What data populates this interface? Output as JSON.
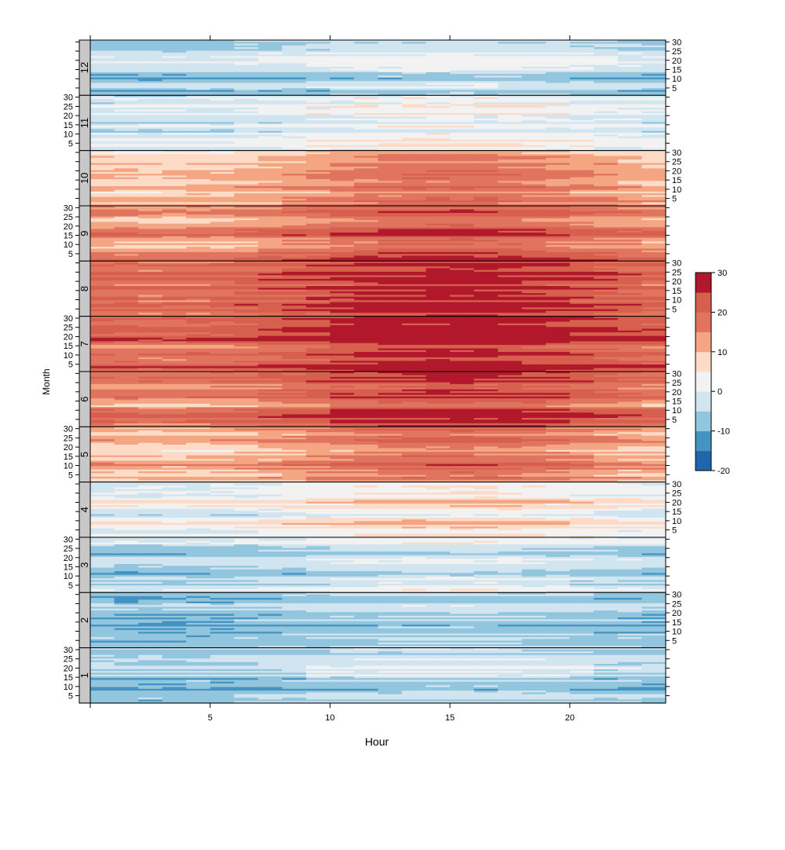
{
  "chart_data": {
    "type": "heatmap",
    "title": "",
    "xlabel": "Hour",
    "ylabel": "Month",
    "xlim": [
      0,
      24
    ],
    "ylim": [
      1,
      31
    ],
    "x_ticks": [
      5,
      10,
      15,
      20
    ],
    "x_tick_labels": [
      "5",
      "10",
      "15",
      "20"
    ],
    "y_ticks": [
      5,
      10,
      15,
      20,
      25,
      30
    ],
    "y_tick_labels": [
      "5",
      "10",
      "15",
      "20",
      "25",
      "30"
    ],
    "panels": [
      {
        "month": 12,
        "label": "12",
        "base": -6,
        "hour_amp": 1.0,
        "tick_side": "right"
      },
      {
        "month": 11,
        "label": "11",
        "base": 2,
        "hour_amp": 1.2,
        "tick_side": "left"
      },
      {
        "month": 10,
        "label": "10",
        "base": 13,
        "hour_amp": 2.5,
        "tick_side": "right"
      },
      {
        "month": 9,
        "label": "9",
        "base": 17,
        "hour_amp": 2.5,
        "tick_side": "left"
      },
      {
        "month": 8,
        "label": "8",
        "base": 22,
        "hour_amp": 2.5,
        "tick_side": "right"
      },
      {
        "month": 7,
        "label": "7",
        "base": 24,
        "hour_amp": 2.5,
        "tick_side": "left"
      },
      {
        "month": 6,
        "label": "6",
        "base": 20,
        "hour_amp": 2.5,
        "tick_side": "right"
      },
      {
        "month": 5,
        "label": "5",
        "base": 14,
        "hour_amp": 2.5,
        "tick_side": "left"
      },
      {
        "month": 4,
        "label": "4",
        "base": 4,
        "hour_amp": 1.5,
        "tick_side": "right"
      },
      {
        "month": 3,
        "label": "3",
        "base": -3,
        "hour_amp": 1.2,
        "tick_side": "left"
      },
      {
        "month": 2,
        "label": "2",
        "base": -7,
        "hour_amp": 1.0,
        "tick_side": "right"
      },
      {
        "month": 1,
        "label": "1",
        "base": -5,
        "hour_amp": 1.0,
        "tick_side": "left"
      }
    ],
    "colorbar": {
      "min": -20,
      "max": 30,
      "step": 5,
      "tick_values": [
        -20,
        -10,
        0,
        10,
        20,
        30
      ],
      "tick_labels": [
        "-20",
        "-10",
        "0",
        "10",
        "20",
        "30"
      ],
      "colors": [
        "#2166ac",
        "#4393c3",
        "#92c5de",
        "#d1e5f0",
        "#f2f2f2",
        "#fddbc7",
        "#f4a582",
        "#e0745e",
        "#d6604d",
        "#b2182b"
      ]
    },
    "strip_color": "#c8c8c8"
  }
}
